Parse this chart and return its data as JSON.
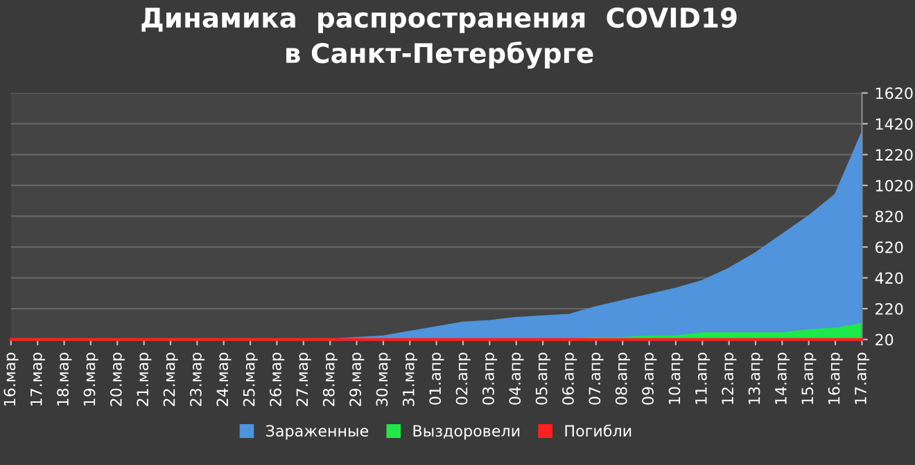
{
  "chart_data": {
    "type": "area",
    "title": "Динамика  распространения  COVID19\nв Санкт-Петербурге",
    "categories": [
      "16.мар",
      "17.мар",
      "18.мар",
      "19.мар",
      "20.мар",
      "21.мар",
      "22.мар",
      "23.мар",
      "24.мар",
      "25.мар",
      "26.мар",
      "27.мар",
      "28.мар",
      "29.мар",
      "30.мар",
      "31.мар",
      "01.апр",
      "02.апр",
      "03.апр",
      "04.апр",
      "05.апр",
      "06.апр",
      "07.апр",
      "08.апр",
      "09.апр",
      "10.апр",
      "11.апр",
      "12.апр",
      "13.апр",
      "14.апр",
      "15.апр",
      "16.апр",
      "17.апр"
    ],
    "series": [
      {
        "name": "Зараженные",
        "color": "#4f94dc",
        "values": [
          20,
          20,
          20,
          20,
          20,
          20,
          20,
          20,
          20,
          20,
          20,
          20,
          20,
          30,
          40,
          70,
          100,
          130,
          140,
          160,
          170,
          180,
          230,
          270,
          310,
          350,
          400,
          480,
          580,
          700,
          820,
          960,
          1360
        ]
      },
      {
        "name": "Выздоровели",
        "color": "#1ee84a",
        "values": [
          20,
          20,
          20,
          20,
          20,
          20,
          20,
          20,
          20,
          20,
          20,
          20,
          20,
          20,
          20,
          20,
          20,
          20,
          20,
          20,
          20,
          20,
          30,
          30,
          40,
          40,
          60,
          60,
          60,
          60,
          80,
          90,
          120
        ]
      },
      {
        "name": "Погибли",
        "color": "#ff2020",
        "type": "line",
        "values": [
          20,
          20,
          20,
          20,
          20,
          20,
          20,
          20,
          20,
          20,
          20,
          20,
          20,
          20,
          20,
          20,
          20,
          20,
          20,
          20,
          20,
          20,
          20,
          20,
          20,
          20,
          20,
          20,
          20,
          20,
          20,
          20,
          20
        ]
      }
    ],
    "ylim": [
      20,
      1620
    ],
    "yticks": [
      20,
      220,
      420,
      620,
      820,
      1020,
      1220,
      1420,
      1620
    ],
    "grid": "y",
    "legend": "bottom"
  }
}
